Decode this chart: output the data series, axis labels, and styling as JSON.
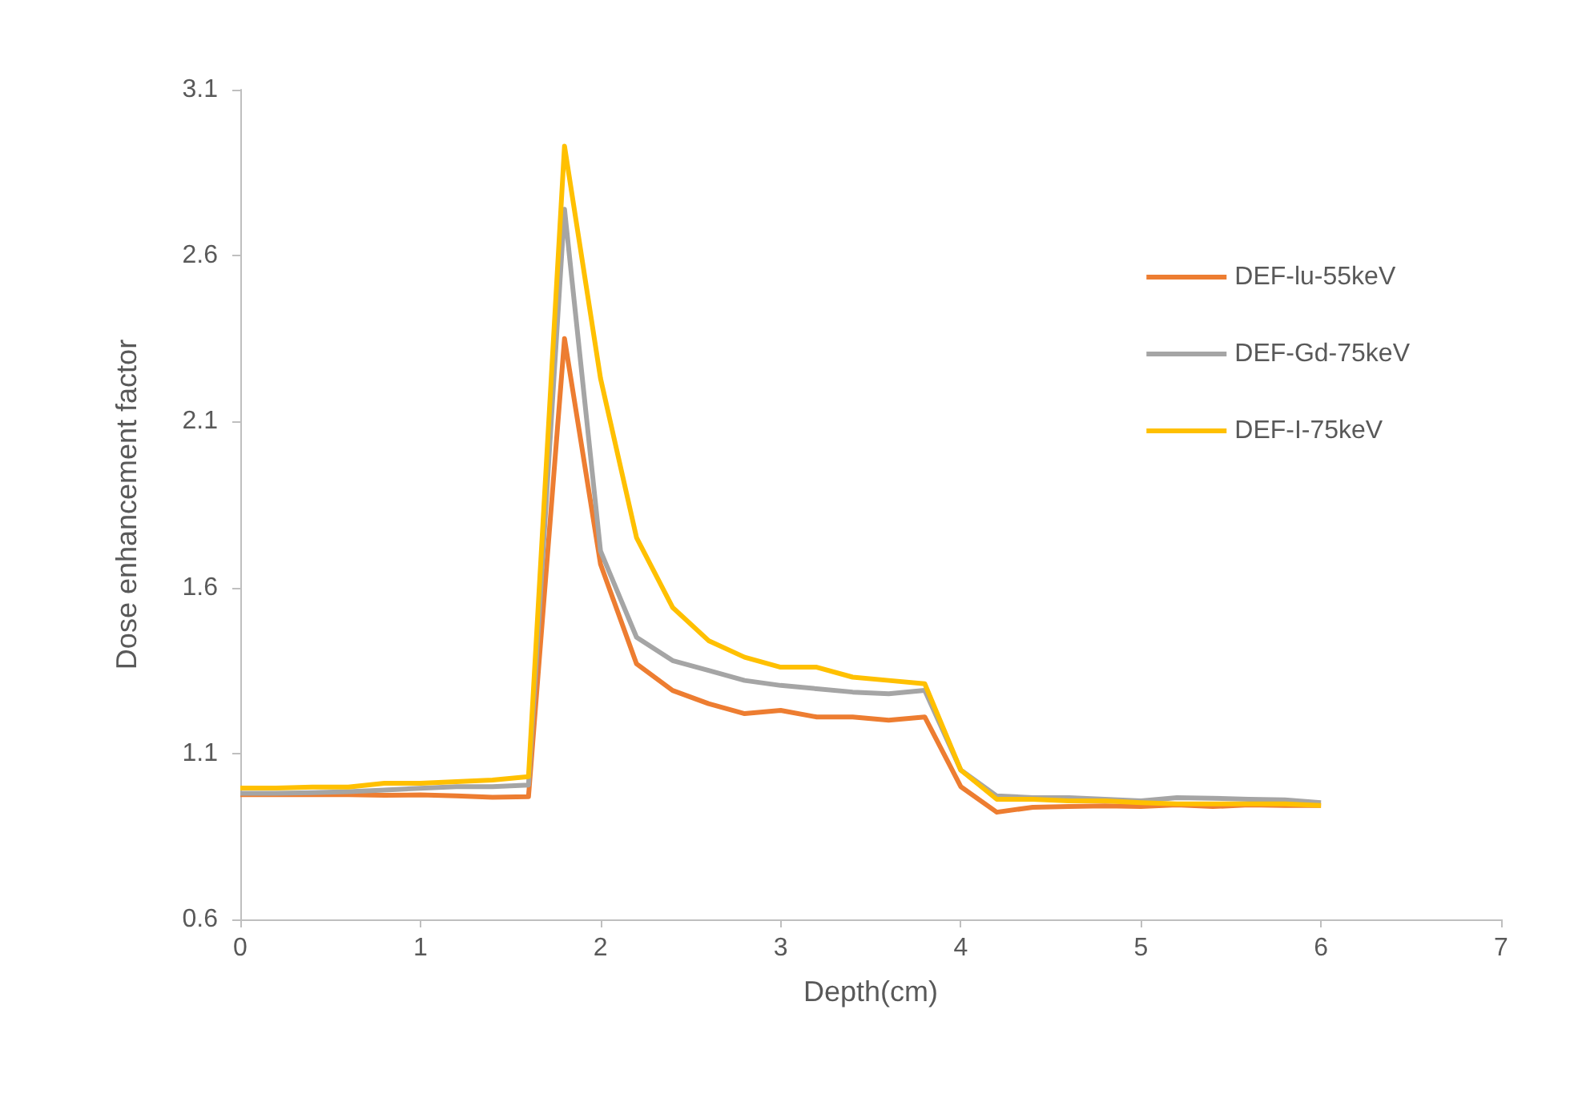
{
  "chart_data": {
    "type": "line",
    "xlabel": "Depth(cm)",
    "ylabel": "Dose enhancement factor",
    "x": [
      0,
      0.2,
      0.4,
      0.6,
      0.8,
      1,
      1.2,
      1.4,
      1.6,
      1.8,
      2,
      2.2,
      2.4,
      2.6,
      2.8,
      3,
      3.2,
      3.4,
      3.6,
      3.8,
      4,
      4.2,
      4.4,
      4.6,
      4.8,
      5,
      5.2,
      5.4,
      5.6,
      5.8,
      6
    ],
    "series": [
      {
        "name": "DEF-lu-55keV",
        "color": "#ed7d31",
        "values": [
          0.976,
          0.976,
          0.976,
          0.976,
          0.974,
          0.975,
          0.972,
          0.968,
          0.97,
          2.35,
          1.67,
          1.37,
          1.29,
          1.25,
          1.22,
          1.23,
          1.21,
          1.21,
          1.2,
          1.21,
          1.0,
          0.923,
          0.938,
          0.94,
          0.942,
          0.94,
          0.945,
          0.94,
          0.945,
          0.943,
          0.943
        ]
      },
      {
        "name": "DEF-Gd-75keV",
        "color": "#a5a5a5",
        "values": [
          0.98,
          0.98,
          0.982,
          0.985,
          0.99,
          0.995,
          1.0,
          1.0,
          1.005,
          2.74,
          1.71,
          1.45,
          1.38,
          1.35,
          1.32,
          1.305,
          1.295,
          1.285,
          1.28,
          1.29,
          1.05,
          0.972,
          0.967,
          0.967,
          0.962,
          0.957,
          0.967,
          0.965,
          0.962,
          0.96,
          0.952
        ]
      },
      {
        "name": "DEF-I-75keV",
        "color": "#ffc000",
        "values": [
          0.996,
          0.996,
          0.999,
          0.999,
          1.01,
          1.01,
          1.015,
          1.02,
          1.03,
          2.93,
          2.23,
          1.75,
          1.54,
          1.44,
          1.39,
          1.36,
          1.36,
          1.33,
          1.32,
          1.31,
          1.05,
          0.962,
          0.962,
          0.957,
          0.957,
          0.952,
          0.948,
          0.948,
          0.948,
          0.948,
          0.943
        ]
      }
    ],
    "xlim": [
      0,
      7
    ],
    "xticks": [
      0,
      1,
      2,
      3,
      4,
      5,
      6,
      7
    ],
    "ylim": [
      0.6,
      3.1
    ],
    "yticks": [
      0.6,
      1.1,
      1.6,
      2.1,
      2.6,
      3.1
    ],
    "grid": false,
    "legend": "right",
    "marker": "none",
    "line_style": "solid"
  }
}
